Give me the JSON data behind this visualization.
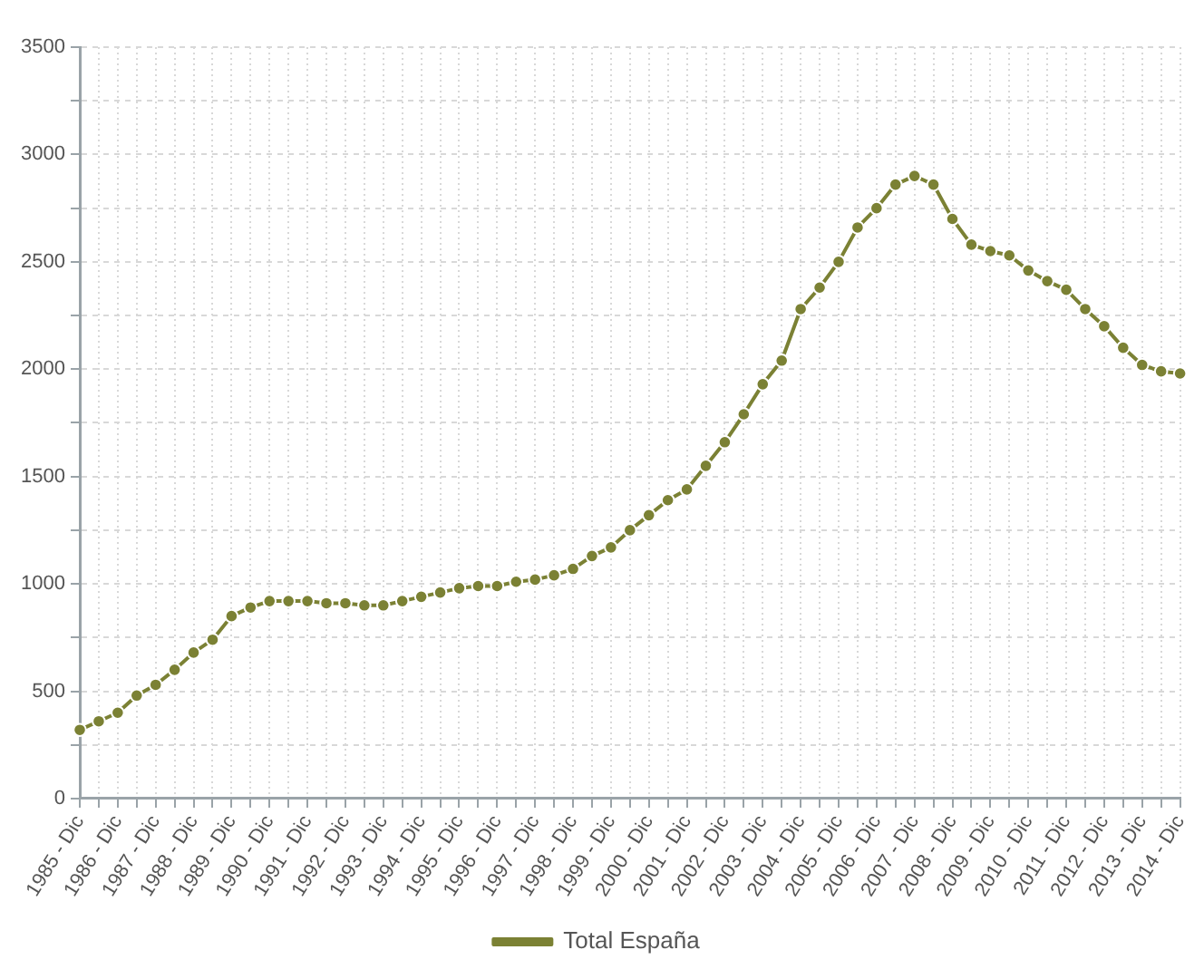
{
  "chart_data": {
    "type": "line",
    "categories": [
      "1985 - Dic",
      null,
      "1986 - Dic",
      null,
      "1987 - Dic",
      null,
      "1988 - Dic",
      null,
      "1989 - Dic",
      null,
      "1990 - Dic",
      null,
      "1991 - Dic",
      null,
      "1992 - Dic",
      null,
      "1993 - Dic",
      null,
      "1994 - Dic",
      null,
      "1995 - Dic",
      null,
      "1996 - Dic",
      null,
      "1997 - Dic",
      null,
      "1998 - Dic",
      null,
      "1999 - Dic",
      null,
      "2000 - Dic",
      null,
      "2001 - Dic",
      null,
      "2002 - Dic",
      null,
      "2003 - Dic",
      null,
      "2004 - Dic",
      null,
      "2005 - Dic",
      null,
      "2006 - Dic",
      null,
      "2007 - Dic",
      null,
      "2008 - Dic",
      null,
      "2009 - Dic",
      null,
      "2010 - Dic",
      null,
      "2011 - Dic",
      null,
      "2012 - Dic",
      null,
      "2013 - Dic",
      null,
      "2014 - Dic"
    ],
    "series": [
      {
        "name": "Total España",
        "color": "#7b8134",
        "values": [
          320,
          360,
          400,
          480,
          530,
          600,
          680,
          740,
          850,
          890,
          920,
          920,
          920,
          910,
          910,
          900,
          900,
          920,
          940,
          960,
          980,
          990,
          990,
          1010,
          1020,
          1040,
          1070,
          1130,
          1170,
          1250,
          1320,
          1390,
          1440,
          1550,
          1660,
          1790,
          1930,
          2040,
          2280,
          2380,
          2500,
          2660,
          2750,
          2860,
          2900,
          2860,
          2700,
          2580,
          2550,
          2530,
          2460,
          2410,
          2370,
          2280,
          2200,
          2100,
          2020,
          1990,
          1980
        ]
      }
    ],
    "ylim": [
      0,
      3500
    ],
    "yticks": [
      0,
      {
        "value": 250,
        "label": null
      },
      500,
      {
        "value": 750,
        "label": null
      },
      1000,
      {
        "value": 1250,
        "label": null
      },
      1500,
      {
        "value": 1750,
        "label": null
      },
      2000,
      {
        "value": 2250,
        "label": null
      },
      2500,
      {
        "value": 2750,
        "label": null
      },
      3000,
      {
        "value": 3250,
        "label": null
      },
      3500
    ],
    "grid": true,
    "legend": "bottom",
    "marker": "circle",
    "line_style": "solid"
  }
}
